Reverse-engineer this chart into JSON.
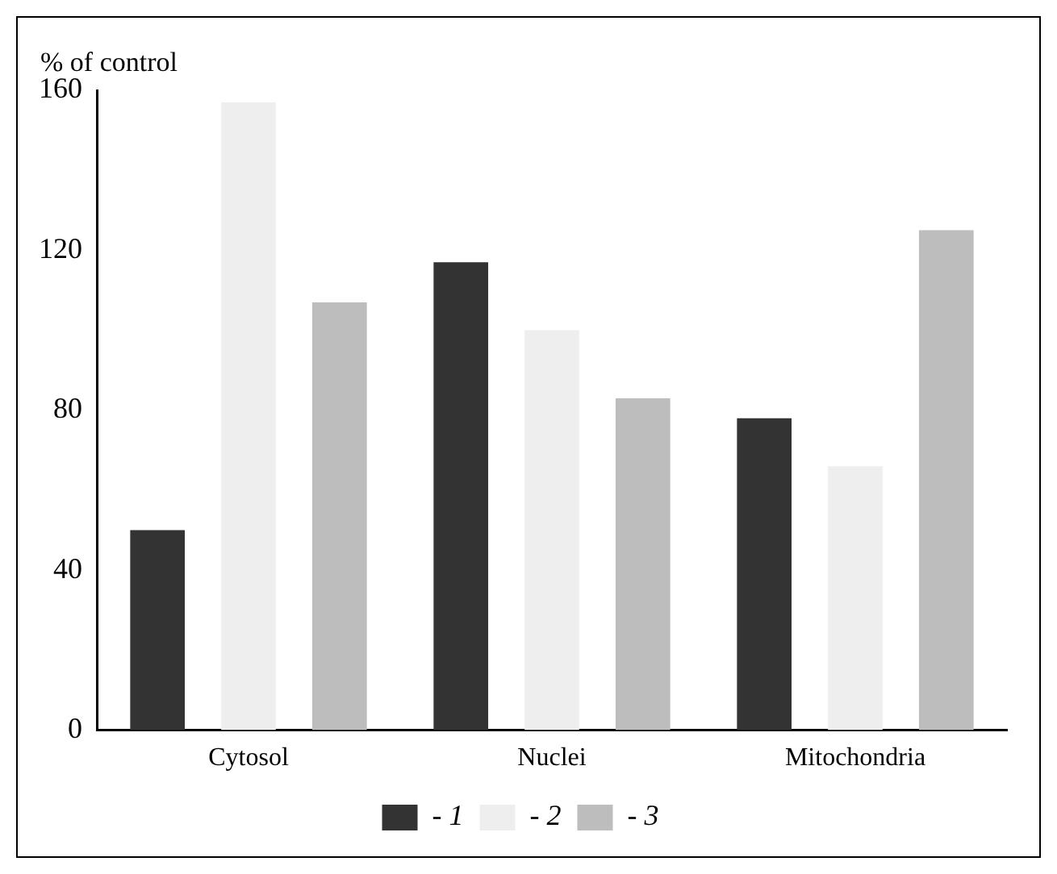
{
  "chart_data": {
    "type": "bar",
    "ylabel": "% of control",
    "categories": [
      "Cytosol",
      "Nuclei",
      "Mitochondria"
    ],
    "series": [
      {
        "name": "- 1",
        "color": "#333333",
        "values": [
          50,
          117,
          78
        ]
      },
      {
        "name": "- 2",
        "color": "#eeeeee",
        "values": [
          157,
          100,
          66
        ]
      },
      {
        "name": "- 3",
        "color": "#bdbdbd",
        "values": [
          107,
          83,
          125
        ]
      }
    ],
    "ylim": [
      0,
      160
    ],
    "yticks": [
      0,
      40,
      80,
      120,
      160
    ],
    "grid": false,
    "legend": "bottom"
  }
}
